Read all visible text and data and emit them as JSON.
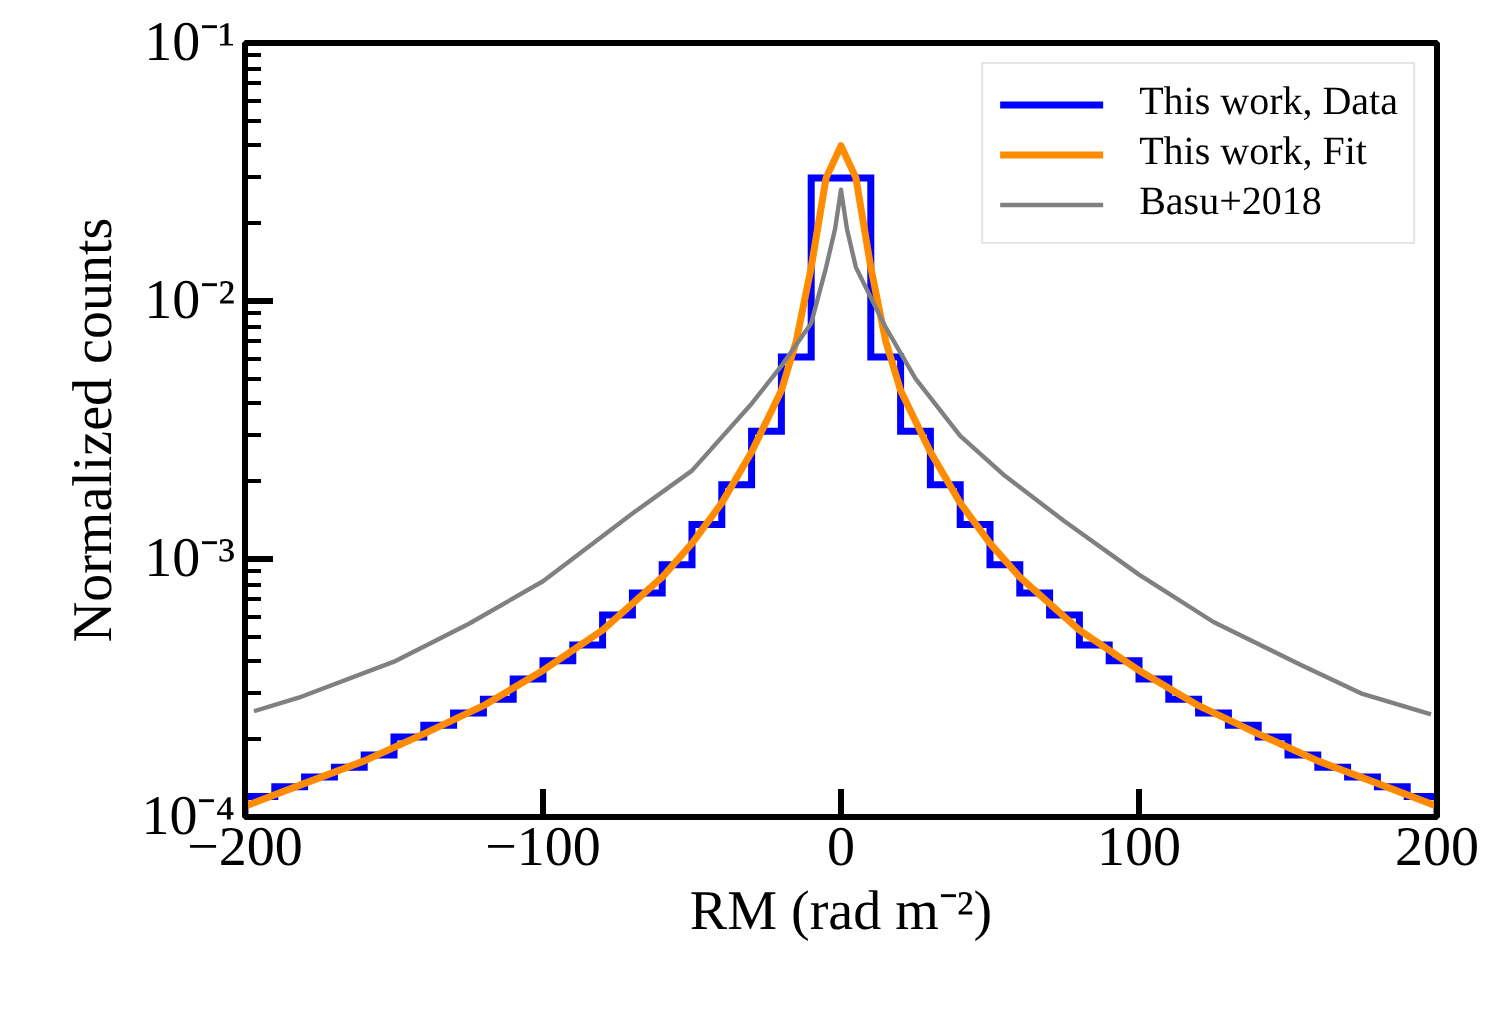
{
  "chart_data": {
    "type": "histogram",
    "xlabel": "RM (rad m⁻²)",
    "ylabel": "Normalized counts",
    "log": "y",
    "xlim": [
      -200,
      200
    ],
    "ylim": [
      0.0001,
      0.1
    ],
    "xticks": [
      {
        "value": -200,
        "label": "−200"
      },
      {
        "value": -100,
        "label": "−100"
      },
      0,
      100,
      200
    ],
    "yticks": [
      {
        "value": 0.0001,
        "label": "10⁻⁴"
      },
      {
        "value": 0.001,
        "label": "10⁻³"
      },
      {
        "value": 0.01,
        "label": "10⁻²"
      },
      {
        "value": 0.1,
        "label": "10⁻¹"
      }
    ],
    "grid": false,
    "legend": "top right",
    "series": [
      {
        "name": "This work, Data",
        "color": "#0000ff",
        "bins": [
          -200,
          -190,
          -180,
          -170,
          -160,
          -150,
          -140,
          -130,
          -120,
          -110,
          -100,
          -90,
          -80,
          -70,
          -60,
          -50,
          -40,
          -30,
          -20,
          -10,
          10,
          20,
          30,
          40,
          50,
          60,
          70,
          80,
          90,
          100,
          110,
          120,
          130,
          140,
          150,
          160,
          170,
          180,
          190,
          200
        ],
        "values": [
          0.00012,
          0.000131,
          0.000143,
          0.000156,
          0.000174,
          0.000204,
          0.000227,
          0.000253,
          0.000286,
          0.000343,
          0.000403,
          0.000464,
          0.000607,
          0.000738,
          0.00095,
          0.00136,
          0.00194,
          0.00313,
          0.00607,
          0.03,
          0.00607,
          0.00313,
          0.00194,
          0.00136,
          0.00095,
          0.000738,
          0.000607,
          0.000464,
          0.000403,
          0.000343,
          0.000286,
          0.000253,
          0.000227,
          0.000204,
          0.000174,
          0.000156,
          0.000143,
          0.000131,
          0.00012
        ]
      },
      {
        "name": "This work, Fit",
        "type": "line",
        "color": "#ff8c00",
        "x": [
          -200,
          -180,
          -160,
          -140,
          -120,
          -100,
          -80,
          -60,
          -50,
          -40,
          -30,
          -20,
          -15,
          -10,
          -5,
          0,
          5,
          10,
          15,
          20,
          30,
          40,
          50,
          60,
          80,
          100,
          120,
          140,
          160,
          180,
          200
        ],
        "values": [
          0.00011,
          0.000135,
          0.000165,
          0.00021,
          0.00027,
          0.00037,
          0.00053,
          0.00085,
          0.00115,
          0.00165,
          0.0026,
          0.0045,
          0.007,
          0.0135,
          0.03,
          0.04,
          0.03,
          0.0135,
          0.007,
          0.0045,
          0.0026,
          0.00165,
          0.00115,
          0.00085,
          0.00053,
          0.00037,
          0.00027,
          0.00021,
          0.000165,
          0.000135,
          0.00011
        ]
      },
      {
        "name": "Basu+2018",
        "type": "line",
        "color": "#808080",
        "x": [
          -197,
          -182,
          -150,
          -125,
          -100,
          -70,
          -50,
          -30,
          -20,
          -10,
          -5,
          -2,
          0,
          2,
          5,
          15,
          25,
          40,
          55,
          75,
          100,
          125,
          154,
          175,
          198
        ],
        "values": [
          0.000257,
          0.00029,
          0.0004,
          0.00056,
          0.00082,
          0.0015,
          0.0022,
          0.004,
          0.0056,
          0.0082,
          0.0135,
          0.019,
          0.027,
          0.019,
          0.0135,
          0.0079,
          0.005,
          0.003,
          0.0021,
          0.0014,
          0.00087,
          0.00057,
          0.00039,
          0.0003,
          0.00025
        ]
      }
    ]
  }
}
